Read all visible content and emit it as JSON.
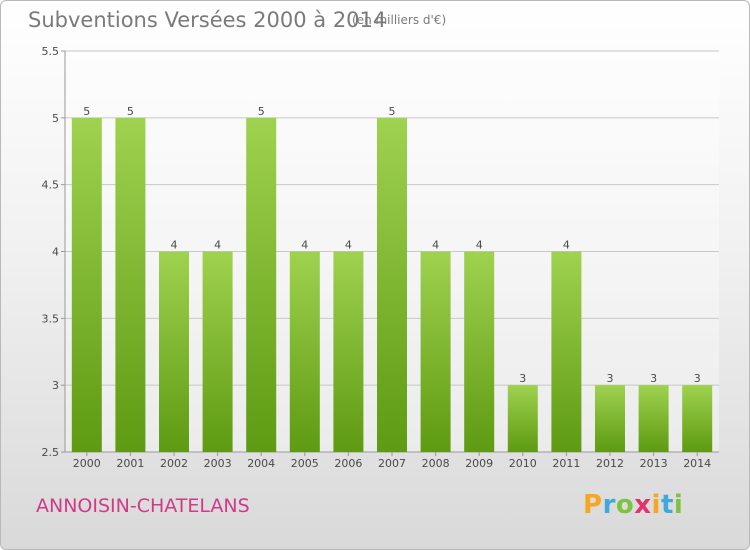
{
  "header": {
    "title": "Subventions Versées 2000 à 2014",
    "subtitle": "(en milliers d'€)"
  },
  "footer": {
    "commune": "ANNOISIN-CHATELANS",
    "logo_letters": [
      "P",
      "r",
      "o",
      "x",
      "i",
      "t",
      "i"
    ],
    "logo_colors": [
      "#f5a623",
      "#3fa9dc",
      "#7dc242",
      "#e2336f",
      "#f5a623",
      "#3fa9dc",
      "#7dc242"
    ]
  },
  "colors": {
    "bar_light": "#9fd24f",
    "bar_dark": "#5e9a12",
    "grid": "#c8c8c8",
    "axis": "#999999",
    "title": "#7a7a7a",
    "commune": "#d03a8a"
  },
  "chart_data": {
    "type": "bar",
    "title": "Subventions Versées 2000 à 2014",
    "subtitle": "(en milliers d'€)",
    "xlabel": "",
    "ylabel": "",
    "categories": [
      "2000",
      "2001",
      "2002",
      "2003",
      "2004",
      "2005",
      "2006",
      "2007",
      "2008",
      "2009",
      "2010",
      "2011",
      "2012",
      "2013",
      "2014"
    ],
    "values": [
      5,
      5,
      4,
      4,
      5,
      4,
      4,
      5,
      4,
      4,
      3,
      4,
      3,
      3,
      3
    ],
    "ylim": [
      2.5,
      5.5
    ],
    "yticks": [
      "2.5",
      "3",
      "3.5",
      "4",
      "4.5",
      "5",
      "5.5"
    ],
    "grid": true,
    "legend": "none"
  }
}
